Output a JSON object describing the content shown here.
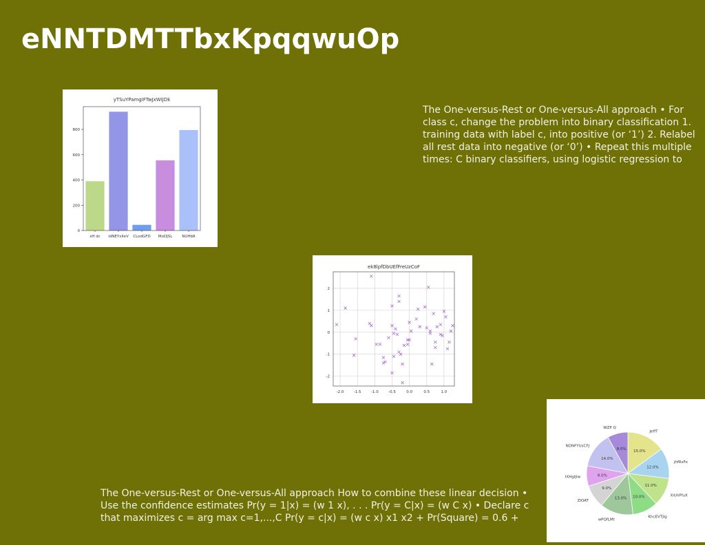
{
  "slide": {
    "title": "eNNTDMTTbxKpqqwuOp",
    "paragraph_right": "The One-versus-Rest or One-versus-All approach • For class c, change the problem into binary classification 1. training data with label c, into positive (or ‘1’) 2. Relabel all rest data into negative (or ‘0’) • Repeat this multiple times: C binary classifiers, using logistic regression to",
    "paragraph_bottom": "The One-versus-Rest or One-versus-All approach How to combine these linear decision • Use the confidence estimates Pr(y = 1|x) = (w 1 x), . . . Pr(y = C|x) = (w C x) • Declare c that maximizes c = arg max c=1,...,C Pr(y = c|x) = (w c x) x1 x2 + Pr(Square) = 0.6 +"
  },
  "chart_data": [
    {
      "type": "bar",
      "title": "yTSuYPamgIFTwJxWIJDk",
      "categories": [
        "sH dc",
        "idNEYxlleV",
        "CLodGFD",
        "MoDJSL",
        "NUHbR"
      ],
      "values": [
        390,
        940,
        45,
        555,
        795
      ],
      "colors": [
        "#bcd98a",
        "#9396e6",
        "#6f9ef0",
        "#c98de0",
        "#aac0fa"
      ],
      "ylim": [
        0,
        980
      ],
      "yticks": [
        0,
        200,
        400,
        600,
        800
      ]
    },
    {
      "type": "scatter",
      "title": "ek8lpfDbUEfFreUzCoF",
      "marker": "x",
      "color": "#a86cc9",
      "xlim": [
        -2.2,
        1.3
      ],
      "ylim": [
        -2.45,
        2.75
      ],
      "xticks": [
        "-2.0",
        "-1.5",
        "-1.0",
        "-0.5",
        "0.0",
        "0.5",
        "1.0"
      ],
      "xtick_values": [
        -2.0,
        -1.5,
        -1.0,
        -0.5,
        0.0,
        0.5,
        1.0
      ],
      "yticks": [
        "-2",
        "-1",
        "0",
        "1",
        "2"
      ],
      "ytick_values": [
        -2,
        -1,
        0,
        1,
        2
      ],
      "x": [
        -2.1,
        -1.85,
        -1.55,
        -1.6,
        -1.15,
        -1.1,
        -1.1,
        -0.95,
        -0.85,
        -0.75,
        -0.75,
        -0.7,
        -0.6,
        -0.5,
        -0.5,
        -0.45,
        -0.45,
        -0.35,
        -0.3,
        -0.3,
        -0.3,
        -0.25,
        -0.2,
        -0.2,
        -0.15,
        -0.05,
        -0.05,
        0.0,
        0.05,
        0.2,
        0.25,
        0.3,
        0.45,
        0.55,
        0.6,
        0.6,
        0.65,
        0.7,
        0.75,
        0.75,
        0.8,
        0.9,
        0.9,
        0.95,
        1.0,
        1.05,
        1.1,
        1.15,
        1.2,
        1.25,
        -0.5,
        -0.4,
        0.0,
        0.5
      ],
      "y": [
        0.35,
        1.1,
        -0.3,
        -1.05,
        0.4,
        0.3,
        2.55,
        -0.55,
        -0.55,
        -1.15,
        -1.4,
        -1.35,
        -0.25,
        1.2,
        0.3,
        -0.05,
        -1.1,
        -0.1,
        1.65,
        -0.9,
        1.4,
        -1.0,
        -2.3,
        -1.45,
        -0.6,
        -0.35,
        -0.55,
        0.45,
        0.05,
        0.6,
        1.05,
        0.25,
        1.15,
        2.05,
        -0.05,
        0.05,
        -1.45,
        0.85,
        -0.45,
        -0.7,
        0.25,
        0.35,
        -0.1,
        -0.15,
        0.95,
        0.7,
        -0.75,
        -0.45,
        0.05,
        0.3,
        -1.85,
        0.15,
        -0.35,
        0.2
      ]
    },
    {
      "type": "pie",
      "labels": [
        "JeffT",
        "jhfRsFo",
        "XiUhPfuX",
        "KhcEVTJlg",
        "wPQfLMt",
        "ZIOAT",
        "IXHgIJiw",
        "NDNFYUsCFJ",
        "WZP Q"
      ],
      "values": [
        15.0,
        12.0,
        11.0,
        10.0,
        13.0,
        9.0,
        8.0,
        14.0,
        8.0
      ],
      "value_labels": [
        "15.0%",
        "12.0%",
        "11.0%",
        "10.0%",
        "13.0%",
        "9.0%",
        "8.0%",
        "14.0%",
        "8.0%"
      ],
      "colors": [
        "#e3e48c",
        "#a8d4ef",
        "#bfe28a",
        "#8edc86",
        "#9ec79b",
        "#d4d4d4",
        "#e0a4ef",
        "#c2c2f1",
        "#a68ad9"
      ]
    }
  ]
}
